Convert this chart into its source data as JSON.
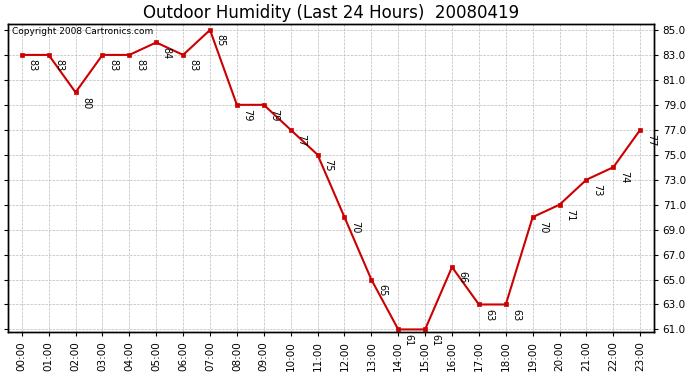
{
  "title": "Outdoor Humidity (Last 24 Hours)  20080419",
  "hours": [
    "00:00",
    "01:00",
    "02:00",
    "03:00",
    "04:00",
    "05:00",
    "06:00",
    "07:00",
    "08:00",
    "09:00",
    "10:00",
    "11:00",
    "12:00",
    "13:00",
    "14:00",
    "15:00",
    "16:00",
    "17:00",
    "18:00",
    "19:00",
    "20:00",
    "21:00",
    "22:00",
    "23:00"
  ],
  "values": [
    83,
    83,
    80,
    83,
    83,
    84,
    83,
    85,
    79,
    79,
    77,
    75,
    70,
    65,
    61,
    61,
    66,
    63,
    63,
    70,
    71,
    73,
    74,
    77
  ],
  "line_color": "#cc0000",
  "marker_color": "#cc0000",
  "bg_color": "#ffffff",
  "grid_color": "#bbbbbb",
  "label_color": "#000000",
  "ylim_min": 61.0,
  "ylim_max": 85.0,
  "ytick_step": 2.0,
  "copyright_text": "Copyright 2008 Cartronics.com",
  "title_fontsize": 12,
  "tick_fontsize": 7.5,
  "label_fontsize": 7,
  "copyright_fontsize": 6.5
}
